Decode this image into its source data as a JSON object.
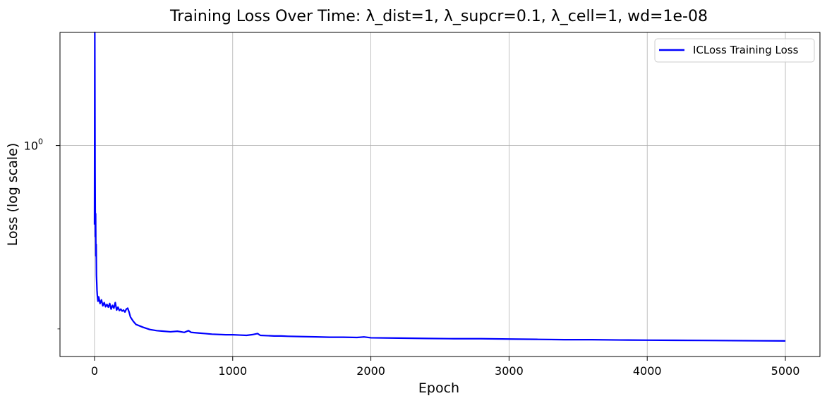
{
  "chart_data": {
    "type": "line",
    "title": "Training Loss Over Time: λ_dist=1, λ_supcr=0.1, λ_cell=1, wd=1e-08",
    "xlabel": "Epoch",
    "ylabel": "Loss (log scale)",
    "yscale": "log",
    "xlim": [
      -250,
      5250
    ],
    "ylim": [
      0.157,
      2.7
    ],
    "grid": true,
    "legend_position": "top-right",
    "x_ticks": [
      0,
      1000,
      2000,
      3000,
      4000,
      5000
    ],
    "x_tick_labels": [
      "0",
      "1000",
      "2000",
      "3000",
      "4000",
      "5000"
    ],
    "y_major_ticks": [
      1.0
    ],
    "y_major_tick_labels": [
      "10^0"
    ],
    "y_minor_ticks": [
      0.2,
      3.0
    ],
    "series": [
      {
        "name": "ICLoss Training Loss",
        "color": "#0000ff",
        "x": [
          0,
          2,
          4,
          6,
          8,
          10,
          12,
          14,
          16,
          18,
          20,
          25,
          30,
          40,
          50,
          60,
          70,
          80,
          90,
          100,
          110,
          120,
          130,
          140,
          150,
          160,
          170,
          180,
          190,
          200,
          210,
          220,
          230,
          240,
          250,
          260,
          280,
          300,
          320,
          350,
          400,
          450,
          500,
          550,
          600,
          650,
          680,
          700,
          750,
          800,
          850,
          900,
          950,
          1000,
          1050,
          1100,
          1150,
          1180,
          1200,
          1250,
          1300,
          1350,
          1400,
          1500,
          1600,
          1700,
          1800,
          1900,
          1950,
          2000,
          2200,
          2400,
          2600,
          2800,
          3000,
          3200,
          3400,
          3600,
          3800,
          4000,
          4200,
          4400,
          4600,
          4800,
          5000
        ],
        "values": [
          0.5,
          2.7,
          0.8,
          0.45,
          0.55,
          0.38,
          0.42,
          0.32,
          0.3,
          0.28,
          0.27,
          0.255,
          0.265,
          0.25,
          0.258,
          0.245,
          0.252,
          0.243,
          0.248,
          0.242,
          0.25,
          0.238,
          0.246,
          0.24,
          0.252,
          0.236,
          0.242,
          0.235,
          0.238,
          0.234,
          0.236,
          0.232,
          0.238,
          0.24,
          0.232,
          0.222,
          0.214,
          0.208,
          0.206,
          0.203,
          0.199,
          0.197,
          0.196,
          0.195,
          0.196,
          0.194,
          0.197,
          0.194,
          0.193,
          0.192,
          0.191,
          0.1905,
          0.19,
          0.19,
          0.1895,
          0.189,
          0.1905,
          0.192,
          0.189,
          0.1885,
          0.188,
          0.188,
          0.1875,
          0.187,
          0.1865,
          0.186,
          0.186,
          0.1855,
          0.1865,
          0.185,
          0.1845,
          0.184,
          0.1835,
          0.1835,
          0.183,
          0.1825,
          0.182,
          0.182,
          0.1815,
          0.1812,
          0.181,
          0.1808,
          0.1805,
          0.1802,
          0.18
        ]
      }
    ]
  }
}
